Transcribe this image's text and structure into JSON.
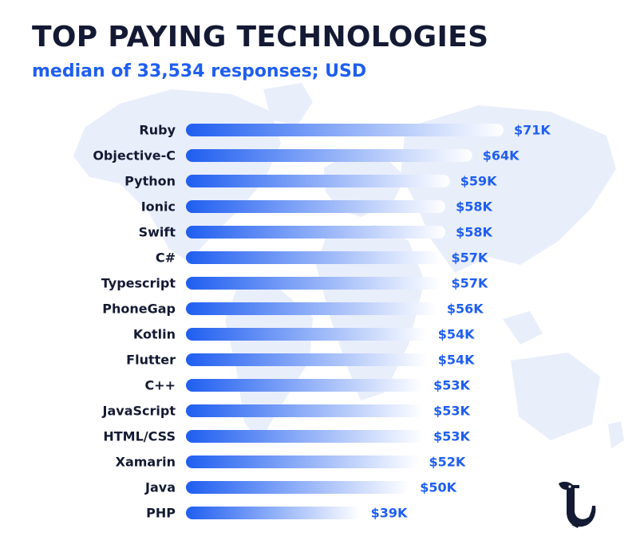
{
  "header": {
    "title": "TOP PAYING TECHNOLOGIES",
    "subtitle": "median of 33,534 responses; USD"
  },
  "colors": {
    "bar_start": "#1f5ef0",
    "bar_end": "#ffffff",
    "title": "#141a33",
    "accent": "#1f5ef0",
    "map": "#e9eefb"
  },
  "chart_data": {
    "type": "bar",
    "orientation": "horizontal",
    "title": "TOP PAYING TECHNOLOGIES",
    "subtitle": "median of 33,534 responses; USD",
    "categories": [
      "Ruby",
      "Objective-C",
      "Python",
      "Ionic",
      "Swift",
      "C#",
      "Typescript",
      "PhoneGap",
      "Kotlin",
      "Flutter",
      "C++",
      "JavaScript",
      "HTML/CSS",
      "Xamarin",
      "Java",
      "PHP"
    ],
    "values": [
      71,
      64,
      59,
      58,
      58,
      57,
      57,
      56,
      54,
      54,
      53,
      53,
      53,
      52,
      50,
      39
    ],
    "value_labels": [
      "$71K",
      "$64K",
      "$59K",
      "$58K",
      "$58K",
      "$57K",
      "$57K",
      "$56K",
      "$54K",
      "$54K",
      "$53K",
      "$53K",
      "$53K",
      "$52K",
      "$50K",
      "$39K"
    ],
    "unit": "USD thousands",
    "grid": false,
    "legend": "none"
  },
  "logo": {
    "icon": "bird-logo-icon"
  }
}
